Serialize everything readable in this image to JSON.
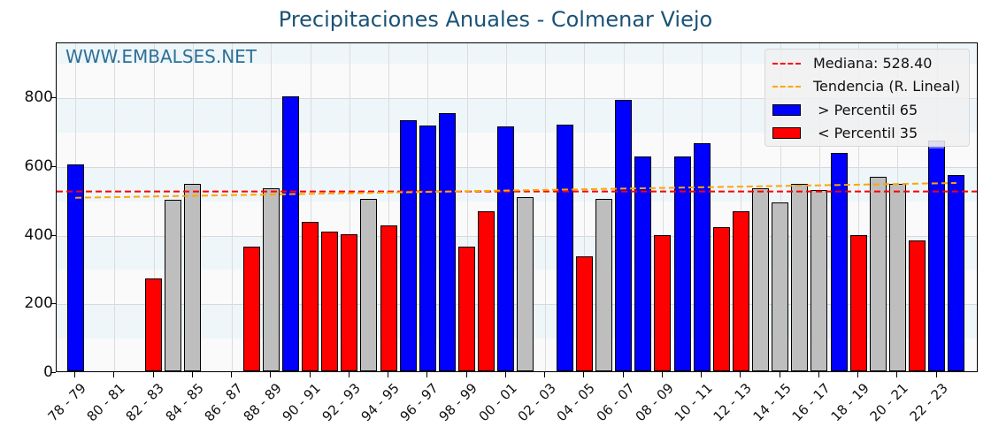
{
  "chart_data": {
    "type": "bar",
    "title": "Precipitaciones Anuales - Colmenar Viejo",
    "watermark": "WWW.EMBALSES.NET",
    "xlabel": "",
    "ylabel": "",
    "ylim": [
      0,
      950
    ],
    "yticks": [
      0,
      200,
      400,
      600,
      800
    ],
    "grid": true,
    "legend_position": "upper right",
    "categories": [
      "78 - 79",
      "79 - 80",
      "80 - 81",
      "81 - 82",
      "82 - 83",
      "83 - 84",
      "84 - 85",
      "85 - 86",
      "86 - 87",
      "87 - 88",
      "88 - 89",
      "89 - 90",
      "90 - 91",
      "91 - 92",
      "92 - 93",
      "93 - 94",
      "94 - 95",
      "95 - 96",
      "96 - 97",
      "97 - 98",
      "98 - 99",
      "99 - 00",
      "00 - 01",
      "01 - 02",
      "02 - 03",
      "03 - 04",
      "04 - 05",
      "05 - 06",
      "06 - 07",
      "07 - 08",
      "08 - 09",
      "09 - 10",
      "10 - 11",
      "11 - 12",
      "12 - 13",
      "13 - 14",
      "14 - 15",
      "15 - 16",
      "16 - 17",
      "17 - 18",
      "18 - 19",
      "19 - 20",
      "20 - 21",
      "21 - 22",
      "22 - 23",
      "23 - 24"
    ],
    "tick_labels": [
      "78 - 79",
      "80 - 81",
      "82 - 83",
      "84 - 85",
      "86 - 87",
      "88 - 89",
      "90 - 91",
      "92 - 93",
      "94 - 95",
      "96 - 97",
      "98 - 99",
      "00 - 01",
      "02 - 03",
      "04 - 05",
      "06 - 07",
      "08 - 09",
      "10 - 11",
      "12 - 13",
      "14 - 15",
      "16 - 17",
      "18 - 19",
      "20 - 21",
      "22 - 23"
    ],
    "values": [
      602,
      0,
      0,
      0,
      270,
      499,
      545,
      0,
      0,
      363,
      532,
      800,
      435,
      406,
      399,
      502,
      424,
      731,
      715,
      751,
      363,
      466,
      713,
      507,
      0,
      718,
      334,
      502,
      790,
      625,
      396,
      625,
      664,
      419,
      466,
      532,
      491,
      545,
      527,
      635,
      396,
      566,
      545,
      381,
      671,
      571
    ],
    "classes": [
      "high",
      "none",
      "none",
      "none",
      "low",
      "mid",
      "mid",
      "none",
      "none",
      "low",
      "mid",
      "high",
      "low",
      "low",
      "low",
      "mid",
      "low",
      "high",
      "high",
      "high",
      "low",
      "low",
      "high",
      "mid",
      "none",
      "high",
      "low",
      "mid",
      "high",
      "high",
      "low",
      "high",
      "high",
      "low",
      "low",
      "mid",
      "mid",
      "mid",
      "mid",
      "high",
      "low",
      "mid",
      "mid",
      "low",
      "high",
      "high"
    ],
    "highlight_index": 44,
    "highlight_cap_value": 651,
    "median": 528.4,
    "trend": {
      "start": 510,
      "end": 553
    },
    "legend": [
      {
        "label": "Mediana: 528.40",
        "kind": "line",
        "color": "#ff0000"
      },
      {
        "label": "Tendencia (R. Lineal)",
        "kind": "line",
        "color": "#ffa500"
      },
      {
        "label": " > Percentil 65",
        "kind": "box",
        "color": "#0000ff"
      },
      {
        "label": " < Percentil 35",
        "kind": "box",
        "color": "#ff0000"
      }
    ],
    "colors": {
      "high": "#0000ff",
      "low": "#ff0000",
      "mid": "#bebebe",
      "median": "#ff0000",
      "trend": "#ffa500",
      "title": "#1a5276"
    }
  }
}
